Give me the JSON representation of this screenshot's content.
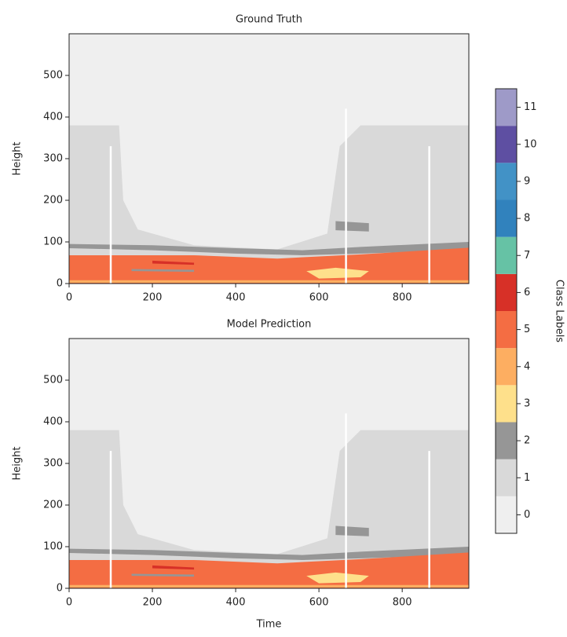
{
  "chart_data": [
    {
      "type": "heatmap",
      "title": "Ground Truth",
      "ylabel": "Height",
      "xlim": [
        0,
        960
      ],
      "ylim": [
        0,
        600
      ],
      "xticks": [
        0,
        200,
        400,
        600,
        800
      ],
      "yticks": [
        0,
        100,
        200,
        300,
        400,
        500
      ]
    },
    {
      "type": "heatmap",
      "title": "Model Prediction",
      "ylabel": "Height",
      "xlabel": "Time",
      "xlim": [
        0,
        960
      ],
      "ylim": [
        0,
        600
      ],
      "xticks": [
        0,
        200,
        400,
        600,
        800
      ],
      "yticks": [
        0,
        100,
        200,
        300,
        400,
        500
      ]
    }
  ],
  "colorbar": {
    "label": "Class Labels",
    "lim": [
      -0.5,
      11.5
    ],
    "ticks": [
      0,
      1,
      2,
      3,
      4,
      5,
      6,
      7,
      8,
      9,
      10,
      11
    ],
    "colors": [
      "#efefef",
      "#d9d9d9",
      "#969696",
      "#fee08b",
      "#fdae61",
      "#f46d43",
      "#d73027",
      "#66c2a5",
      "#3182bd",
      "#4292c6",
      "#5e4fa2",
      "#9e9ac8"
    ]
  }
}
